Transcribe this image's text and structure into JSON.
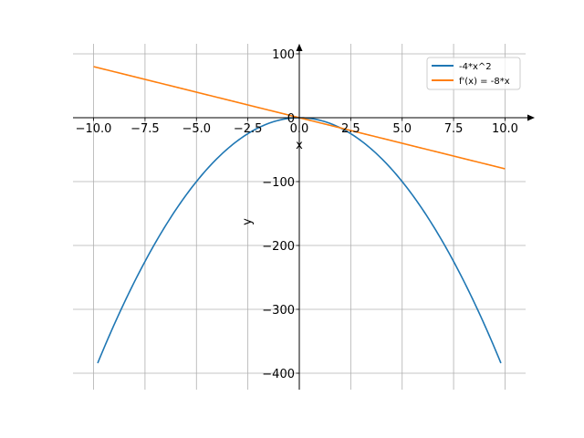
{
  "chart_data": {
    "type": "line",
    "title": "",
    "xlabel": "x",
    "ylabel": "y",
    "xlim": [
      -11,
      11
    ],
    "ylim": [
      -425.7,
      115.7
    ],
    "grid": true,
    "legend_position": "top-right",
    "x_ticks": [
      -10,
      -7.5,
      -5,
      -2.5,
      0,
      2.5,
      5,
      7.5,
      10
    ],
    "x_tick_labels": [
      "−10.0",
      "−7.5",
      "−5.0",
      "−2.5",
      "0.0",
      "2.5",
      "5.0",
      "7.5",
      "10.0"
    ],
    "y_ticks": [
      100,
      0,
      -100,
      -200,
      -300,
      -400
    ],
    "y_tick_labels": [
      "100",
      "0",
      "−100",
      "−200",
      "−300",
      "−400"
    ],
    "series": [
      {
        "name": "-4*x^2",
        "expr": "-4*x^2",
        "x_range": [
          -9.8,
          9.8
        ],
        "color": "#1f77b4"
      },
      {
        "name": "f'(x) = -8*x",
        "expr": "-8*x",
        "x_range": [
          -10,
          10
        ],
        "color": "#ff7f0e"
      }
    ]
  }
}
